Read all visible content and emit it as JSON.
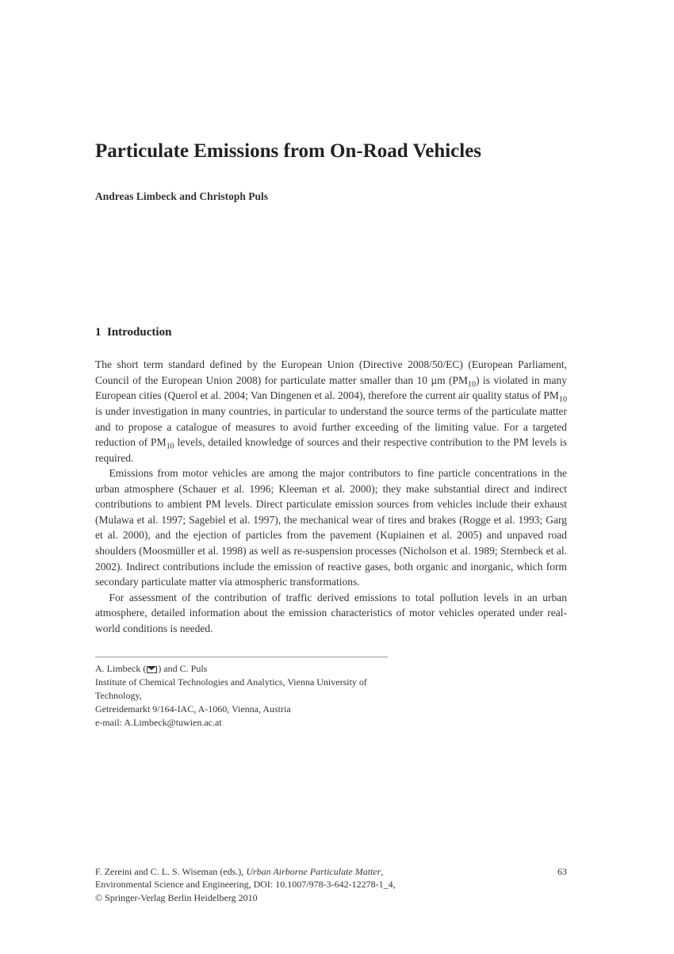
{
  "title": "Particulate Emissions from On-Road Vehicles",
  "authors": "Andreas Limbeck and Christoph Puls",
  "section": {
    "number": "1",
    "title": "Introduction"
  },
  "paragraphs": {
    "p1_a": "The short term standard defined by the European Union (Directive 2008/50/EC) (European Parliament, Council of the European Union 2008) for particulate matter smaller than 10 µm (PM",
    "p1_sub1": "10",
    "p1_b": ") is violated in many European cities (Querol et al. 2004; Van Dingenen et al. 2004), therefore the current air quality status of PM",
    "p1_sub2": "10",
    "p1_c": " is under investigation in many countries, in particular to understand the source terms of the particulate matter and to propose a catalogue of measures to avoid further exceeding of the limiting value. For a targeted reduction of PM",
    "p1_sub3": "10",
    "p1_d": " levels, detailed knowledge of sources and their respective contribution to the PM levels is required.",
    "p2": "Emissions from motor vehicles are among the major contributors to fine particle concentrations in the urban atmosphere (Schauer et al. 1996; Kleeman et al. 2000); they make substantial direct and indirect contributions to ambient PM levels. Direct particulate emission sources from vehicles include their exhaust (Mulawa et al. 1997; Sagebiel et al. 1997), the mechanical wear of tires and brakes (Rogge et al. 1993; Garg et al. 2000), and the ejection of particles from the pavement (Kupiainen et al. 2005) and unpaved road shoulders (Moosmüller et al. 1998) as well as re-suspension processes (Nicholson et al. 1989; Sternbeck et al. 2002). Indirect contributions include the emission of reactive gases, both organic and inorganic, which form secondary particulate matter via atmospheric transformations.",
    "p3": "For assessment of the contribution of traffic derived emissions to total pollution levels in an urban atmosphere, detailed information about the emission characteristics of motor vehicles operated under real-world conditions is needed."
  },
  "affiliation": {
    "names": "A. Limbeck (",
    "names2": ") and C. Puls",
    "institute": "Institute of Chemical Technologies and Analytics, Vienna University of Technology,",
    "address": "Getreidemarkt 9/164-IAC, A-1060, Vienna, Austria",
    "email_label": "e-mail: ",
    "email": "A.Limbeck@tuwien.ac.at"
  },
  "footer": {
    "editors": "F. Zereini and C. L. S. Wiseman (eds.), ",
    "book": "Urban Airborne Particulate Matter",
    "series": "Environmental Science and Engineering, DOI: 10.1007/978-3-642-12278-1_4,",
    "copyright": "© Springer-Verlag Berlin Heidelberg 2010",
    "page": "63"
  },
  "colors": {
    "text": "#333333",
    "background": "#ffffff",
    "rule": "#999999"
  },
  "typography": {
    "title_fontsize_pt": 19,
    "body_fontsize_pt": 10,
    "small_fontsize_pt": 9,
    "font_family": "Times New Roman"
  }
}
